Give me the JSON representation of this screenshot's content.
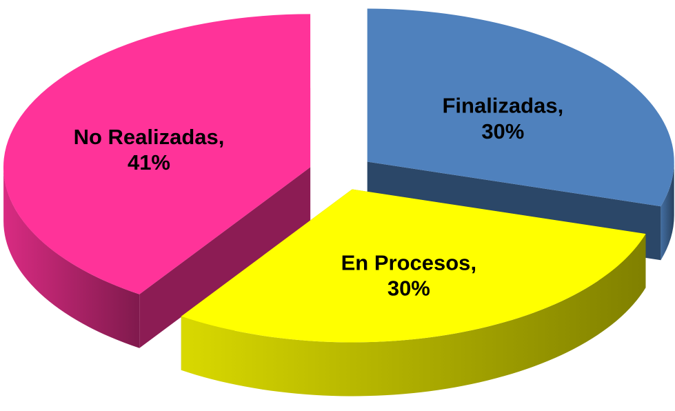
{
  "chart_data": {
    "type": "pie",
    "style": "3d-exploded",
    "categories": [
      "Finalizadas",
      "En Procesos",
      "No Realizadas"
    ],
    "values": [
      30,
      30,
      41
    ],
    "value_labels": [
      "30%",
      "30%",
      "41%"
    ],
    "label_separator": ",",
    "colors": [
      "#4f81bd",
      "#ffff00",
      "#ff3399"
    ]
  }
}
